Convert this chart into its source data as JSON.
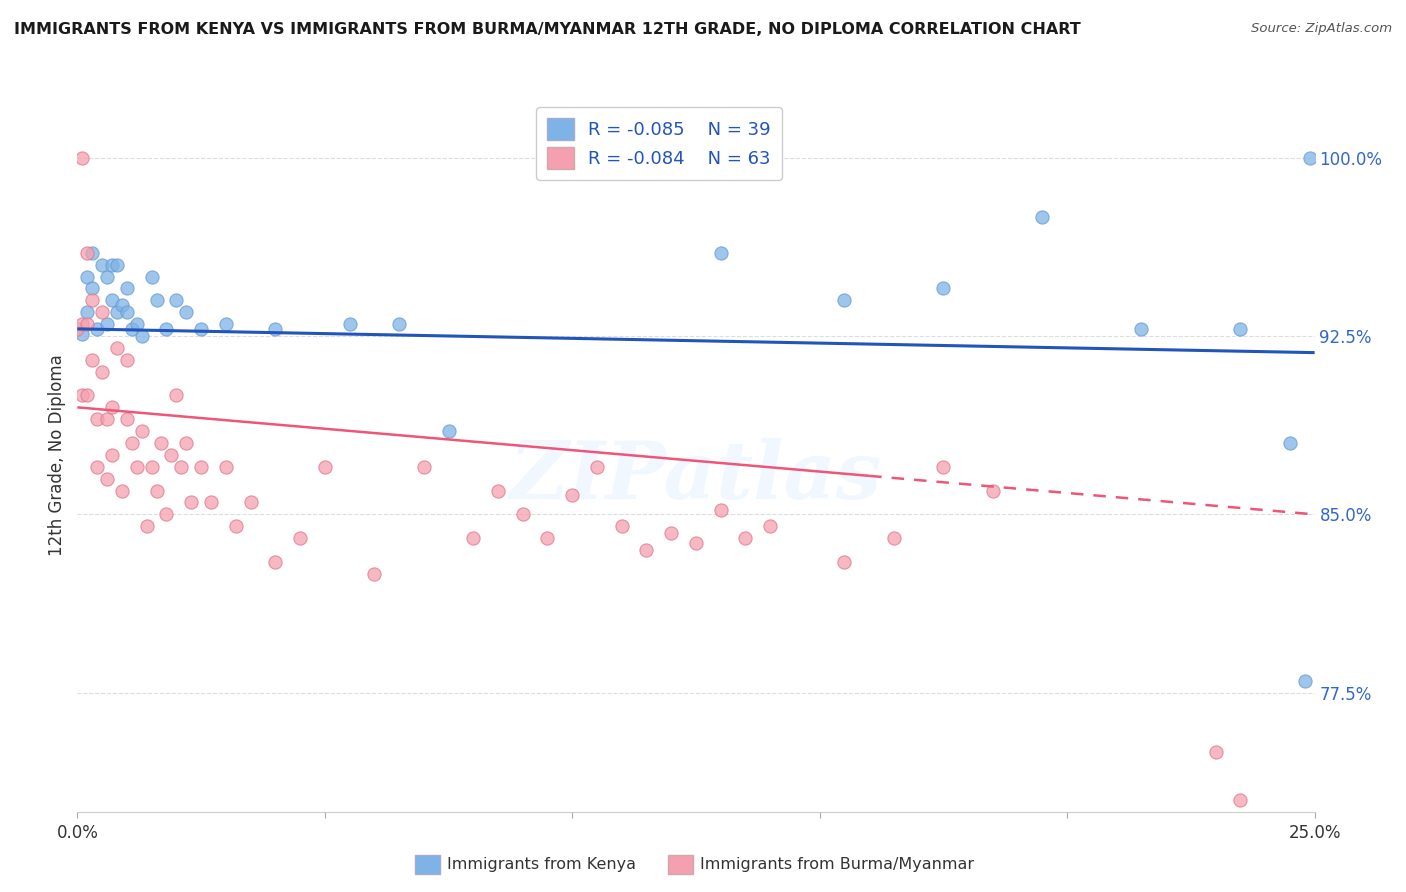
{
  "title": "IMMIGRANTS FROM KENYA VS IMMIGRANTS FROM BURMA/MYANMAR 12TH GRADE, NO DIPLOMA CORRELATION CHART",
  "source": "Source: ZipAtlas.com",
  "xlabel_kenya": "Immigrants from Kenya",
  "xlabel_burma": "Immigrants from Burma/Myanmar",
  "ylabel": "12th Grade, No Diploma",
  "xlim": [
    0.0,
    0.25
  ],
  "ylim": [
    0.725,
    1.025
  ],
  "x_ticks": [
    0.0,
    0.05,
    0.1,
    0.15,
    0.2,
    0.25
  ],
  "x_tick_labels": [
    "0.0%",
    "",
    "",
    "",
    "",
    "25.0%"
  ],
  "y_ticks_right": [
    0.775,
    0.85,
    0.925,
    1.0
  ],
  "y_tick_labels_right": [
    "77.5%",
    "85.0%",
    "92.5%",
    "100.0%"
  ],
  "r_kenya": -0.085,
  "n_kenya": 39,
  "r_burma": -0.084,
  "n_burma": 63,
  "color_kenya": "#7EB3E8",
  "color_burma": "#F5A0B0",
  "color_kenya_line": "#2255BB",
  "color_burma_line": "#EE5577",
  "kenya_x": [
    0.001,
    0.002,
    0.002,
    0.003,
    0.003,
    0.004,
    0.005,
    0.006,
    0.006,
    0.007,
    0.007,
    0.008,
    0.008,
    0.009,
    0.01,
    0.01,
    0.011,
    0.012,
    0.013,
    0.015,
    0.016,
    0.018,
    0.02,
    0.022,
    0.025,
    0.03,
    0.04,
    0.055,
    0.065,
    0.075,
    0.13,
    0.155,
    0.175,
    0.195,
    0.215,
    0.235,
    0.245,
    0.248,
    0.249
  ],
  "kenya_y": [
    0.926,
    0.935,
    0.95,
    0.945,
    0.96,
    0.928,
    0.955,
    0.93,
    0.95,
    0.94,
    0.955,
    0.935,
    0.955,
    0.938,
    0.935,
    0.945,
    0.928,
    0.93,
    0.925,
    0.95,
    0.94,
    0.928,
    0.94,
    0.935,
    0.928,
    0.93,
    0.928,
    0.93,
    0.93,
    0.885,
    0.96,
    0.94,
    0.945,
    0.975,
    0.928,
    0.928,
    0.88,
    0.78,
    1.0
  ],
  "burma_x": [
    0.0,
    0.001,
    0.001,
    0.001,
    0.002,
    0.002,
    0.002,
    0.003,
    0.003,
    0.004,
    0.004,
    0.005,
    0.005,
    0.006,
    0.006,
    0.007,
    0.007,
    0.008,
    0.009,
    0.01,
    0.01,
    0.011,
    0.012,
    0.013,
    0.014,
    0.015,
    0.016,
    0.017,
    0.018,
    0.019,
    0.02,
    0.021,
    0.022,
    0.023,
    0.025,
    0.027,
    0.03,
    0.032,
    0.035,
    0.04,
    0.045,
    0.05,
    0.06,
    0.07,
    0.08,
    0.085,
    0.09,
    0.095,
    0.1,
    0.105,
    0.11,
    0.115,
    0.12,
    0.125,
    0.13,
    0.135,
    0.14,
    0.155,
    0.165,
    0.175,
    0.185,
    0.23,
    0.235
  ],
  "burma_y": [
    0.928,
    1.0,
    0.93,
    0.9,
    0.96,
    0.93,
    0.9,
    0.94,
    0.915,
    0.89,
    0.87,
    0.935,
    0.91,
    0.89,
    0.865,
    0.895,
    0.875,
    0.92,
    0.86,
    0.89,
    0.915,
    0.88,
    0.87,
    0.885,
    0.845,
    0.87,
    0.86,
    0.88,
    0.85,
    0.875,
    0.9,
    0.87,
    0.88,
    0.855,
    0.87,
    0.855,
    0.87,
    0.845,
    0.855,
    0.83,
    0.84,
    0.87,
    0.825,
    0.87,
    0.84,
    0.86,
    0.85,
    0.84,
    0.858,
    0.87,
    0.845,
    0.835,
    0.842,
    0.838,
    0.852,
    0.84,
    0.845,
    0.83,
    0.84,
    0.87,
    0.86,
    0.75,
    0.73
  ],
  "watermark": "ZIPatlas",
  "background_color": "#FFFFFF",
  "grid_color": "#DDDDDD",
  "kenya_line_x": [
    0.0,
    0.25
  ],
  "kenya_line_y": [
    0.928,
    0.918
  ],
  "burma_line_x": [
    0.0,
    0.25
  ],
  "burma_line_y": [
    0.895,
    0.85
  ],
  "burma_line_solid_end": 0.16,
  "burma_line_dash_start": 0.16
}
